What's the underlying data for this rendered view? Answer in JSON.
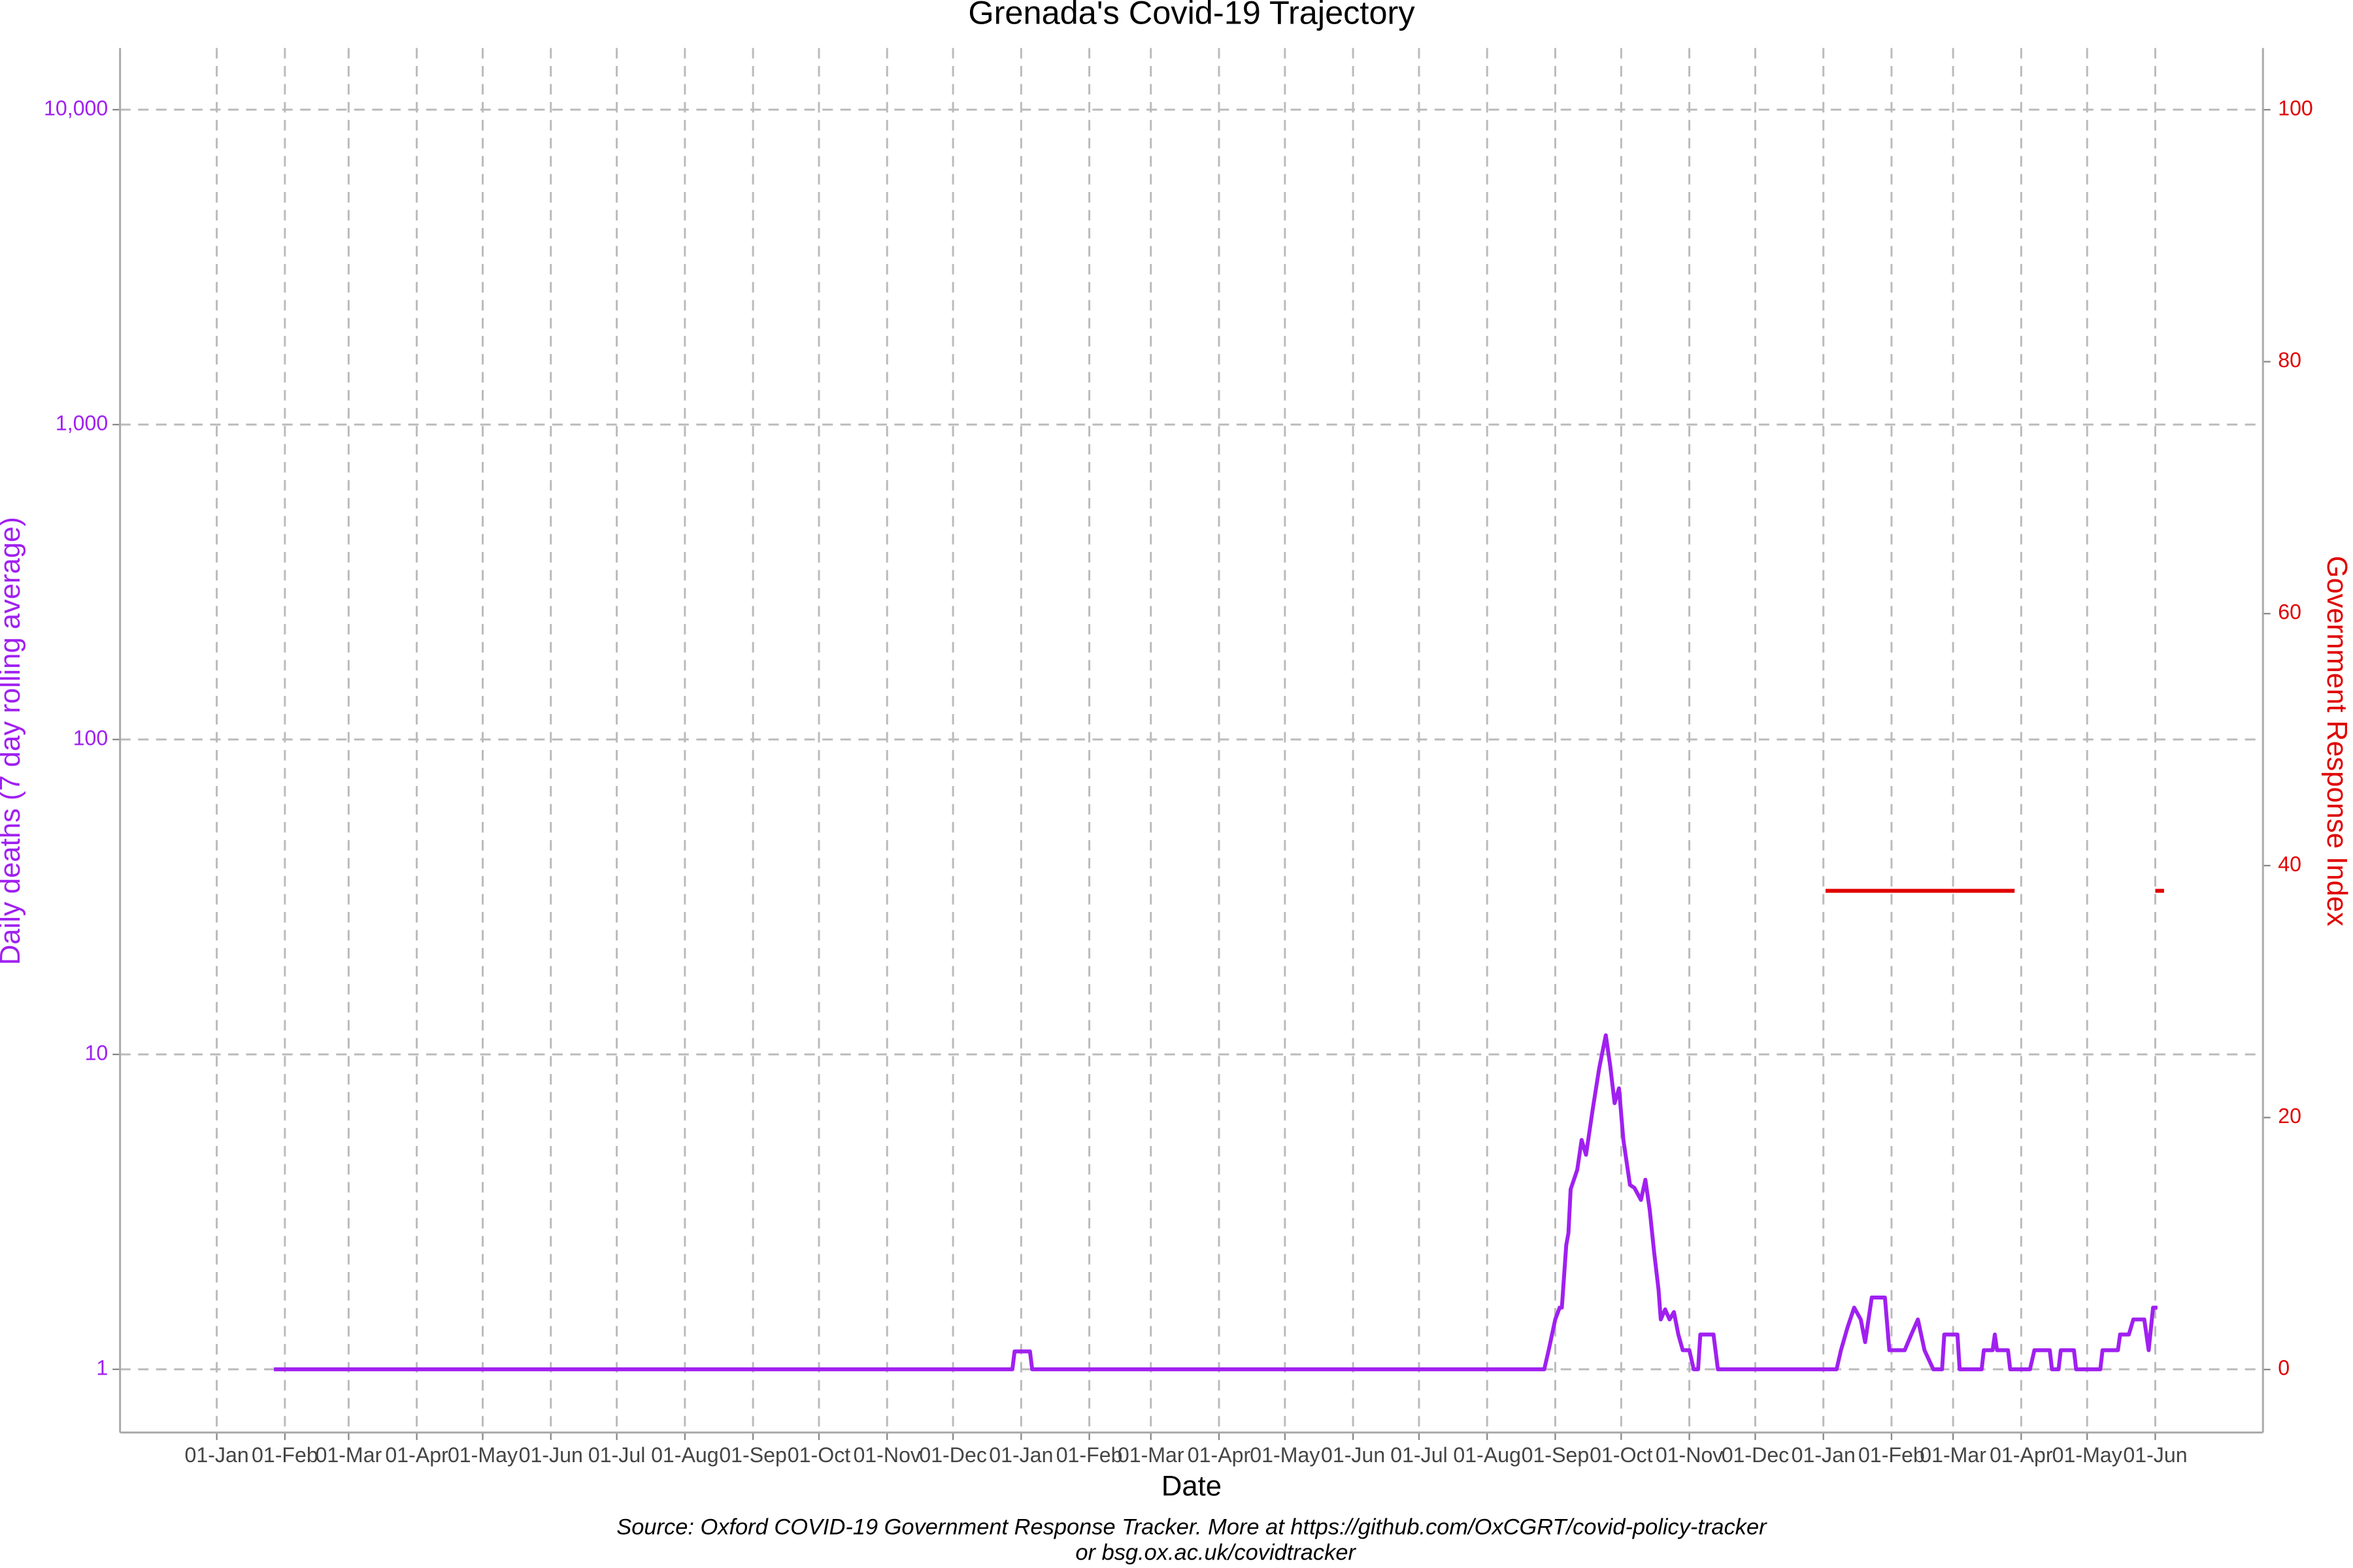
{
  "chart_data": {
    "type": "line",
    "title": "Grenada's Covid-19 Trajectory",
    "x_label": "Date",
    "y_label": "Daily deaths (7 day rolling average)",
    "y2_label": "Government Response Index",
    "caption": [
      "Source: Oxford COVID-19 Government Response Tracker. More at https://github.com/OxCGRT/covid-policy-tracker",
      "or bsg.ox.ac.uk/covidtracker"
    ],
    "y_scale": "log",
    "grid": true,
    "xlim": [
      -44,
      931
    ],
    "xticks": [
      {
        "value": 0,
        "label": "01-Jan"
      },
      {
        "value": 31,
        "label": "01-Feb"
      },
      {
        "value": 60,
        "label": "01-Mar"
      },
      {
        "value": 91,
        "label": "01-Apr"
      },
      {
        "value": 121,
        "label": "01-May"
      },
      {
        "value": 152,
        "label": "01-Jun"
      },
      {
        "value": 182,
        "label": "01-Jul"
      },
      {
        "value": 213,
        "label": "01-Aug"
      },
      {
        "value": 244,
        "label": "01-Sep"
      },
      {
        "value": 274,
        "label": "01-Oct"
      },
      {
        "value": 305,
        "label": "01-Nov"
      },
      {
        "value": 335,
        "label": "01-Dec"
      },
      {
        "value": 366,
        "label": "01-Jan"
      },
      {
        "value": 397,
        "label": "01-Feb"
      },
      {
        "value": 425,
        "label": "01-Mar"
      },
      {
        "value": 456,
        "label": "01-Apr"
      },
      {
        "value": 486,
        "label": "01-May"
      },
      {
        "value": 517,
        "label": "01-Jun"
      },
      {
        "value": 547,
        "label": "01-Jul"
      },
      {
        "value": 578,
        "label": "01-Aug"
      },
      {
        "value": 609,
        "label": "01-Sep"
      },
      {
        "value": 639,
        "label": "01-Oct"
      },
      {
        "value": 670,
        "label": "01-Nov"
      },
      {
        "value": 700,
        "label": "01-Dec"
      },
      {
        "value": 731,
        "label": "01-Jan"
      },
      {
        "value": 762,
        "label": "01-Feb"
      },
      {
        "value": 790,
        "label": "01-Mar"
      },
      {
        "value": 821,
        "label": "01-Apr"
      },
      {
        "value": 851,
        "label": "01-May"
      },
      {
        "value": 882,
        "label": "01-Jun"
      }
    ],
    "ylim": [
      0.63,
      15700
    ],
    "yticks": [
      1,
      10,
      100,
      {
        "value": 1000,
        "label": "1,000"
      },
      {
        "value": 10000,
        "label": "10,000"
      }
    ],
    "y_color": "#a020f0",
    "y2lim": [
      -5,
      104.9
    ],
    "y2ticks": [
      0,
      20,
      40,
      60,
      80,
      100
    ],
    "y2_color": "#e00000",
    "series": [
      {
        "color": "#a020f0",
        "x": [
          26,
          362,
          363,
          370,
          371,
          604,
          606,
          609,
          611,
          612,
          614,
          615,
          616,
          619,
          621,
          623,
          626,
          629,
          632,
          634,
          636,
          638,
          640,
          643,
          645,
          648,
          650,
          652,
          654,
          656,
          657,
          659,
          661,
          663,
          665,
          667,
          670,
          672,
          674,
          675,
          681,
          683,
          737,
          739,
          742,
          745,
          748,
          750,
          753,
          759,
          761,
          768,
          771,
          774,
          777,
          781,
          785,
          786,
          792,
          793,
          803,
          804,
          808,
          809,
          810,
          815,
          816,
          825,
          827,
          834,
          835,
          838,
          839,
          845,
          846,
          857,
          858,
          865,
          866,
          870,
          872,
          877,
          879,
          881,
          883
        ],
        "values": [
          1,
          1,
          1.14,
          1.14,
          1,
          1,
          1.15,
          1.44,
          1.57,
          1.57,
          2.48,
          2.71,
          3.73,
          4.3,
          5.35,
          4.8,
          6.66,
          9.05,
          11.5,
          9.2,
          7.0,
          7.8,
          5.35,
          3.85,
          3.77,
          3.45,
          4.0,
          3.2,
          2.35,
          1.79,
          1.44,
          1.55,
          1.44,
          1.52,
          1.29,
          1.15,
          1.15,
          1,
          1,
          1.29,
          1.29,
          1,
          1,
          1.15,
          1.36,
          1.57,
          1.44,
          1.22,
          1.69,
          1.69,
          1.15,
          1.15,
          1.29,
          1.44,
          1.15,
          1,
          1,
          1.29,
          1.29,
          1,
          1,
          1.15,
          1.15,
          1.29,
          1.15,
          1.15,
          1,
          1,
          1.15,
          1.15,
          1,
          1,
          1.15,
          1.15,
          1,
          1,
          1.15,
          1.15,
          1.29,
          1.29,
          1.44,
          1.44,
          1.15,
          1.57,
          1.57
        ]
      },
      {
        "color": "#e00000",
        "axis": "y2",
        "x": [
          732,
          818,
          819,
          882,
          886
        ],
        "values": [
          38,
          38,
          null,
          38,
          38
        ]
      }
    ]
  }
}
